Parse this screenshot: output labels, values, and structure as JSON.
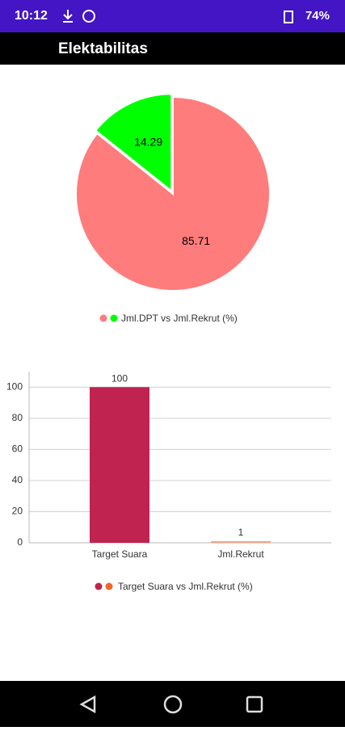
{
  "status_bar": {
    "time": "10:12",
    "battery": "74%"
  },
  "app_bar": {
    "title": "Elektabilitas"
  },
  "chart_data": [
    {
      "type": "pie",
      "values": [
        85.71,
        14.29
      ],
      "colors": [
        "#ff7c7c",
        "#00ff00"
      ],
      "legend": "Jml.DPT vs Jml.Rekrut (%)"
    },
    {
      "type": "bar",
      "categories": [
        "Target Suara",
        "Jml.Rekrut"
      ],
      "values": [
        100,
        1
      ],
      "colors": [
        "#c0234f",
        "#f4a07c"
      ],
      "legend_colors": [
        "#c0234f",
        "#f26522"
      ],
      "ylim": [
        0,
        110
      ],
      "yticks": [
        0,
        20,
        40,
        60,
        80,
        100
      ],
      "grid": true,
      "legend": "Target Suara vs Jml.Rekrut (%)"
    }
  ]
}
